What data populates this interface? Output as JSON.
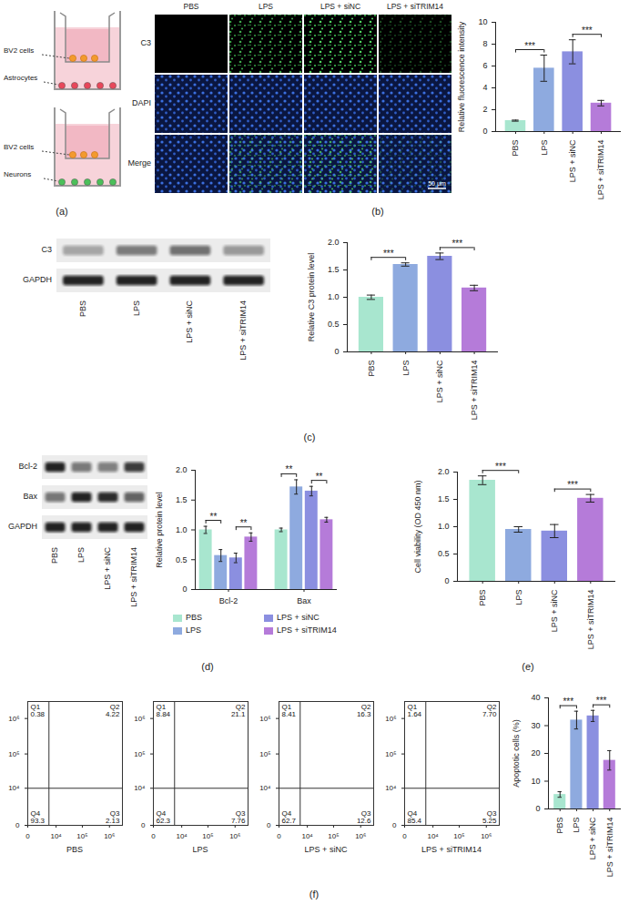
{
  "chart_data": [
    {
      "type": "bar",
      "panel": "(b)",
      "ylabel": "Relative fluorescence intensity",
      "categories": [
        "PBS",
        "LPS",
        "LPS + siNC",
        "LPS + siTRIM14"
      ],
      "values": [
        1.0,
        5.8,
        7.3,
        2.6
      ],
      "errors": [
        0.05,
        1.2,
        1.1,
        0.25
      ],
      "colors": [
        "#a8e6cf",
        "#8eaadf",
        "#8b8fe0",
        "#b57bd9"
      ],
      "ylim": [
        0,
        10
      ],
      "yticks": [
        0,
        2,
        4,
        6,
        8,
        10
      ],
      "annotations": [
        {
          "groups": [
            "PBS",
            "LPS"
          ],
          "text": "***"
        },
        {
          "groups": [
            "LPS + siNC",
            "LPS + siTRIM14"
          ],
          "text": "***"
        }
      ]
    },
    {
      "type": "bar",
      "panel": "(c)",
      "ylabel": "Relative C3 protein level",
      "categories": [
        "PBS",
        "LPS",
        "LPS + siNC",
        "LPS + siTRIM14"
      ],
      "values": [
        1.0,
        1.6,
        1.75,
        1.17
      ],
      "errors": [
        0.04,
        0.03,
        0.06,
        0.05
      ],
      "colors": [
        "#a8e6cf",
        "#8eaadf",
        "#8b8fe0",
        "#b57bd9"
      ],
      "ylim": [
        0,
        2.0
      ],
      "yticks": [
        0,
        0.5,
        {
          "value": 1,
          "label": "1.0"
        },
        1.5,
        {
          "value": 2,
          "label": "2.0"
        }
      ],
      "annotations": [
        {
          "groups": [
            "PBS",
            "LPS"
          ],
          "text": "***"
        },
        {
          "groups": [
            "LPS + siNC",
            "LPS + siTRIM14"
          ],
          "text": "***"
        }
      ]
    },
    {
      "type": "bar",
      "panel": "(d)",
      "ylabel": "Relative protein level",
      "categories": [
        "Bcl-2",
        "Bax"
      ],
      "series": [
        {
          "name": "PBS",
          "color": "#a8e6cf",
          "values": [
            1.0,
            1.0
          ],
          "errors": [
            0.06,
            0.03
          ]
        },
        {
          "name": "LPS",
          "color": "#8eaadf",
          "values": [
            0.57,
            1.72
          ],
          "errors": [
            0.1,
            0.12
          ]
        },
        {
          "name": "LPS + siNC",
          "color": "#8b8fe0",
          "values": [
            0.53,
            1.65
          ],
          "errors": [
            0.08,
            0.08
          ]
        },
        {
          "name": "LPS + siTRIM14",
          "color": "#b57bd9",
          "values": [
            0.88,
            1.17
          ],
          "errors": [
            0.07,
            0.04
          ]
        }
      ],
      "legend": "bottom",
      "ylim": [
        0,
        2.0
      ],
      "yticks": [
        0,
        0.5,
        {
          "value": 1,
          "label": "1.0"
        },
        1.5,
        {
          "value": 2,
          "label": "2.0"
        }
      ],
      "annotations": [
        {
          "category": "Bcl-2",
          "groups": [
            "PBS",
            "LPS"
          ],
          "text": "**"
        },
        {
          "category": "Bcl-2",
          "groups": [
            "LPS + siNC",
            "LPS + siTRIM14"
          ],
          "text": "**"
        },
        {
          "category": "Bax",
          "groups": [
            "PBS",
            "LPS"
          ],
          "text": "**"
        },
        {
          "category": "Bax",
          "groups": [
            "LPS + siNC",
            "LPS + siTRIM14"
          ],
          "text": "**"
        }
      ]
    },
    {
      "type": "bar",
      "panel": "(e)",
      "ylabel": "Cell viability (OD 450 nm)",
      "categories": [
        "PBS",
        "LPS",
        "LPS + siNC",
        "LPS + siTRIM14"
      ],
      "values": [
        1.85,
        0.95,
        0.92,
        1.52
      ],
      "errors": [
        0.08,
        0.05,
        0.12,
        0.07
      ],
      "colors": [
        "#a8e6cf",
        "#8eaadf",
        "#8b8fe0",
        "#b57bd9"
      ],
      "ylim": [
        0,
        2.0
      ],
      "yticks": [
        0,
        0.5,
        {
          "value": 1,
          "label": "1.0"
        },
        1.5,
        {
          "value": 2,
          "label": "2.0"
        }
      ],
      "annotations": [
        {
          "groups": [
            "PBS",
            "LPS"
          ],
          "text": "***"
        },
        {
          "groups": [
            "LPS + siNC",
            "LPS + siTRIM14"
          ],
          "text": "***"
        }
      ]
    },
    {
      "type": "bar",
      "panel": "(f)",
      "ylabel": "Apoptotic cells (%)",
      "categories": [
        "PBS",
        "LPS",
        "LPS + siNC",
        "LPS + siTRIM14"
      ],
      "values": [
        5.2,
        32,
        33.5,
        17.5
      ],
      "errors": [
        1.0,
        3.2,
        2.0,
        3.5
      ],
      "colors": [
        "#a8e6cf",
        "#8eaadf",
        "#8b8fe0",
        "#b57bd9"
      ],
      "ylim": [
        0,
        40
      ],
      "yticks": [
        0,
        10,
        20,
        30,
        40
      ],
      "annotations": [
        {
          "groups": [
            "PBS",
            "LPS"
          ],
          "text": "***"
        },
        {
          "groups": [
            "LPS + siNC",
            "LPS + siTRIM14"
          ],
          "text": "***"
        }
      ]
    }
  ],
  "figure": {
    "a": {
      "panel": "(a)",
      "transwells": [
        {
          "upper": "BV2 cells",
          "lower": "Astrocytes"
        },
        {
          "upper": "BV2 cells",
          "lower": "Neurons"
        }
      ]
    },
    "b_images": {
      "columns": [
        "PBS",
        "LPS",
        "LPS + siNC",
        "LPS + siTRIM14"
      ],
      "rows": [
        "C3",
        "DAPI",
        "Merge"
      ],
      "scale_bar": "50 μm"
    },
    "c_blot": {
      "lanes": [
        "PBS",
        "LPS",
        "LPS + siNC",
        "LPS + siTRIM14"
      ],
      "rows": [
        "C3",
        "GAPDH"
      ]
    },
    "d_blot": {
      "lanes": [
        "PBS",
        "LPS",
        "LPS + siNC",
        "LPS + siTRIM14"
      ],
      "rows": [
        "Bcl-2",
        "Bax",
        "GAPDH"
      ]
    },
    "f_flow": {
      "log": true,
      "xlim": [
        0,
        3000000
      ],
      "ylim": [
        0,
        3000000
      ],
      "xticks": [
        0,
        {
          "value": 10000,
          "label": "10⁴"
        },
        {
          "value": 100000,
          "label": "10⁵"
        },
        {
          "value": 1000000,
          "label": "10⁶"
        }
      ],
      "yticks": [
        0,
        {
          "value": 10000,
          "label": "10⁴"
        },
        {
          "value": 100000,
          "label": "10⁵"
        },
        {
          "value": 1000000,
          "label": "10⁶"
        }
      ],
      "gates": {
        "x": 5000,
        "y": 10000
      },
      "plots": [
        {
          "name": "PBS",
          "quadrants": [
            {
              "label": "Q1",
              "value": 0.38
            },
            {
              "label": "Q2",
              "value": 4.22
            },
            {
              "label": "Q3",
              "value": 2.13
            },
            {
              "label": "Q4",
              "value": 93.3
            }
          ]
        },
        {
          "name": "LPS",
          "quadrants": [
            {
              "label": "Q1",
              "value": 8.84
            },
            {
              "label": "Q2",
              "value": 21.1
            },
            {
              "label": "Q3",
              "value": 7.76
            },
            {
              "label": "Q4",
              "value": 62.3
            }
          ]
        },
        {
          "name": "LPS + siNC",
          "quadrants": [
            {
              "label": "Q1",
              "value": 8.41
            },
            {
              "label": "Q2",
              "value": 16.3
            },
            {
              "label": "Q3",
              "value": 12.6
            },
            {
              "label": "Q4",
              "value": 62.7
            }
          ]
        },
        {
          "name": "LPS + siTRIM14",
          "quadrants": [
            {
              "label": "Q1",
              "value": 1.64
            },
            {
              "label": "Q2",
              "value": 7.7,
              "value_label": "7.70"
            },
            {
              "label": "Q3",
              "value": 5.25
            },
            {
              "label": "Q4",
              "value": 85.4
            }
          ]
        }
      ]
    }
  }
}
